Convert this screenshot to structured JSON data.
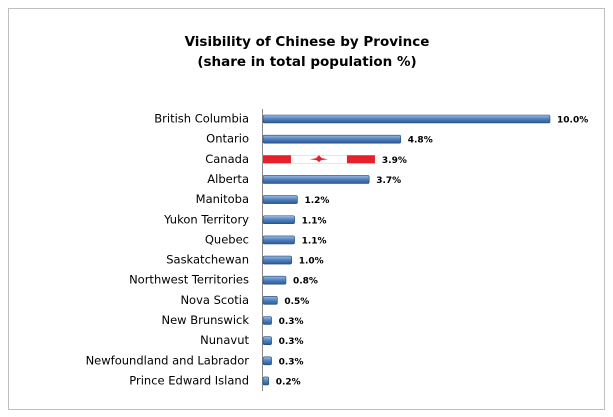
{
  "chart_data": {
    "type": "bar",
    "orientation": "horizontal",
    "title": "Visibility of Chinese by Province",
    "subtitle": "(share in total population %)",
    "categories": [
      "British Columbia",
      "Ontario",
      "Canada",
      "Alberta",
      "Manitoba",
      "Yukon Territory",
      "Quebec",
      "Saskatchewan",
      "Northwest Territories",
      "Nova Scotia",
      "New Brunswick",
      "Nunavut",
      "Newfoundland and Labrador",
      "Prince Edward Island"
    ],
    "values": [
      10.0,
      4.8,
      3.9,
      3.7,
      1.2,
      1.1,
      1.1,
      1.0,
      0.8,
      0.5,
      0.3,
      0.3,
      0.3,
      0.2
    ],
    "value_labels": [
      "10.0%",
      "4.8%",
      "3.9%",
      "3.7%",
      "1.2%",
      "1.1%",
      "1.1%",
      "1.0%",
      "0.8%",
      "0.5%",
      "0.3%",
      "0.3%",
      "0.3%",
      "0.2%"
    ],
    "color": "#4f81bd",
    "highlight": "Canada",
    "highlight_color": "#e8202a"
  }
}
